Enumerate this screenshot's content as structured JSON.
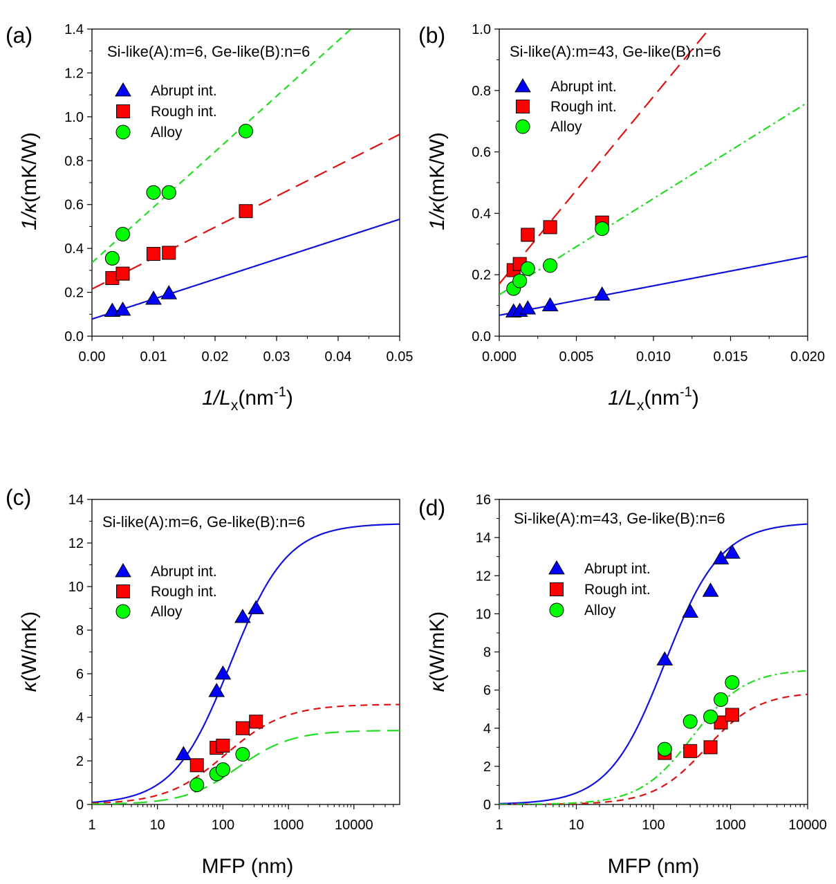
{
  "chart_data": [
    {
      "panel": "(a)",
      "type": "scatter",
      "annotation": "Si-like(A):m=6, Ge-like(B):n=6",
      "xlabel": "1/Lₓ(nm⁻¹)",
      "xlabel_main": "1/L",
      "xlabel_sub": "x",
      "xlabel_unit": "(nm",
      "xlabel_sup": "-1",
      "xlabel_close": ")",
      "ylabel": "1/κ (mK/W)",
      "ylabel_main": "1/κ",
      "ylabel_unit": "(mK/W)",
      "xscale": "linear",
      "xlim": [
        0,
        0.05
      ],
      "ylim": [
        0,
        1.4
      ],
      "xticks": [
        0,
        0.01,
        0.02,
        0.03,
        0.04,
        0.05
      ],
      "xtick_labels": [
        "0.00",
        "0.01",
        "0.02",
        "0.03",
        "0.04",
        "0.05"
      ],
      "yticks": [
        0,
        0.2,
        0.4,
        0.6,
        0.8,
        1.0,
        1.2,
        1.4
      ],
      "ytick_labels": [
        "0.0",
        "0.2",
        "0.4",
        "0.6",
        "0.8",
        "1.0",
        "1.2",
        "1.4"
      ],
      "legend_position": "upper-left",
      "series": [
        {
          "name": "Abrupt int.",
          "marker": "triangle",
          "color": "#0000ff",
          "x": [
            0.0033,
            0.005,
            0.01,
            0.0125
          ],
          "y": [
            0.115,
            0.12,
            0.17,
            0.195
          ],
          "fit": {
            "style": "solid",
            "kind": "linear",
            "intercept": 0.078,
            "slope": 9.1
          }
        },
        {
          "name": "Rough int.",
          "marker": "square",
          "color": "#ff0000",
          "x": [
            0.0033,
            0.005,
            0.01,
            0.0125,
            0.025
          ],
          "y": [
            0.265,
            0.285,
            0.375,
            0.38,
            0.57
          ],
          "fit": {
            "style": "dashed-long",
            "kind": "linear",
            "intercept": 0.215,
            "slope": 14.1
          }
        },
        {
          "name": "Alloy",
          "marker": "circle",
          "color": "#00ff00",
          "x": [
            0.0033,
            0.005,
            0.01,
            0.0125,
            0.025
          ],
          "y": [
            0.355,
            0.465,
            0.655,
            0.655,
            0.935
          ],
          "fit": {
            "style": "dashed",
            "kind": "linear",
            "intercept": 0.335,
            "slope": 25.3
          }
        }
      ]
    },
    {
      "panel": "(b)",
      "type": "scatter",
      "annotation": "Si-like(A):m=43, Ge-like(B):n=6",
      "xlabel": "1/Lₓ(nm⁻¹)",
      "xlabel_main": "1/L",
      "xlabel_sub": "x",
      "xlabel_unit": "(nm",
      "xlabel_sup": "-1",
      "xlabel_close": ")",
      "ylabel": "1/κ (mK/W)",
      "ylabel_main": "1/κ",
      "ylabel_unit": "(mK/W)",
      "xscale": "linear",
      "xlim": [
        0,
        0.02
      ],
      "ylim": [
        0,
        1.0
      ],
      "xticks": [
        0,
        0.005,
        0.01,
        0.015,
        0.02
      ],
      "xtick_labels": [
        "0.000",
        "0.005",
        "0.010",
        "0.015",
        "0.020"
      ],
      "yticks": [
        0,
        0.2,
        0.4,
        0.6,
        0.8,
        1.0
      ],
      "ytick_labels": [
        "0.0",
        "0.2",
        "0.4",
        "0.6",
        "0.8",
        "1.0"
      ],
      "legend_position": "upper-left",
      "series": [
        {
          "name": "Abrupt int.",
          "marker": "triangle",
          "color": "#0000ff",
          "x": [
            0.00093,
            0.00133,
            0.00185,
            0.0033,
            0.00667
          ],
          "y": [
            0.08,
            0.082,
            0.09,
            0.1,
            0.135
          ],
          "fit": {
            "style": "solid",
            "kind": "linear",
            "intercept": 0.068,
            "slope": 9.6
          }
        },
        {
          "name": "Rough int.",
          "marker": "square",
          "color": "#ff0000",
          "x": [
            0.00093,
            0.00133,
            0.00185,
            0.0033,
            0.00667
          ],
          "y": [
            0.215,
            0.235,
            0.33,
            0.355,
            0.37
          ],
          "fit": {
            "style": "dashed-long",
            "kind": "linear",
            "intercept": 0.17,
            "slope": 61.0
          }
        },
        {
          "name": "Alloy",
          "marker": "circle",
          "color": "#00ff00",
          "x": [
            0.00093,
            0.00133,
            0.00185,
            0.0033,
            0.00667
          ],
          "y": [
            0.155,
            0.18,
            0.22,
            0.23,
            0.35
          ],
          "fit": {
            "style": "dash-dot",
            "kind": "linear",
            "intercept": 0.135,
            "slope": 31.3
          }
        }
      ]
    },
    {
      "panel": "(c)",
      "type": "scatter",
      "annotation": "Si-like(A):m=6, Ge-like(B):n=6",
      "xlabel": "MFP (nm)",
      "ylabel": "κ(W/mK)",
      "ylabel_main": "κ",
      "ylabel_unit": "(W/mK)",
      "xscale": "log",
      "xlim": [
        1,
        50000
      ],
      "ylim": [
        0,
        14
      ],
      "xticks": [
        1,
        10,
        100,
        1000,
        10000
      ],
      "xtick_labels": [
        "1",
        "10",
        "100",
        "1000",
        "10000"
      ],
      "yticks": [
        0,
        2,
        4,
        6,
        8,
        10,
        12,
        14
      ],
      "ytick_labels": [
        "0",
        "2",
        "4",
        "6",
        "8",
        "10",
        "12",
        "14"
      ],
      "legend_position": "center-left",
      "series": [
        {
          "name": "Abrupt int.",
          "marker": "triangle",
          "color": "#0000ff",
          "x": [
            25,
            80,
            100,
            200,
            320
          ],
          "y": [
            2.3,
            5.2,
            6.0,
            8.6,
            9.0
          ],
          "fit": {
            "style": "solid",
            "kind": "sigmoid-log",
            "plateau": 12.9,
            "center": 130,
            "width": 0.95
          }
        },
        {
          "name": "Rough int.",
          "marker": "square",
          "color": "#ff0000",
          "x": [
            40,
            80,
            100,
            200,
            320
          ],
          "y": [
            1.8,
            2.6,
            2.7,
            3.5,
            3.8
          ],
          "fit": {
            "style": "dashed",
            "kind": "sigmoid-log",
            "plateau": 4.6,
            "center": 110,
            "width": 1.0
          }
        },
        {
          "name": "Alloy",
          "marker": "circle",
          "color": "#00ff00",
          "x": [
            40,
            80,
            100,
            200
          ],
          "y": [
            0.9,
            1.4,
            1.6,
            2.3
          ],
          "fit": {
            "style": "dashed-long",
            "kind": "sigmoid-log",
            "plateau": 3.4,
            "center": 170,
            "width": 0.9
          }
        }
      ]
    },
    {
      "panel": "(d)",
      "type": "scatter",
      "annotation": "Si-like(A):m=43, Ge-like(B):n=6",
      "xlabel": "MFP (nm)",
      "ylabel": "κ(W/mK)",
      "ylabel_main": "κ",
      "ylabel_unit": "(W/mK)",
      "xscale": "log",
      "xlim": [
        1,
        10000
      ],
      "ylim": [
        0,
        16
      ],
      "xticks": [
        1,
        10,
        100,
        1000,
        10000
      ],
      "xtick_labels": [
        "1",
        "10",
        "100",
        "1000",
        "10000"
      ],
      "yticks": [
        0,
        2,
        4,
        6,
        8,
        10,
        12,
        14,
        16
      ],
      "ytick_labels": [
        "0",
        "2",
        "4",
        "6",
        "8",
        "10",
        "12",
        "14",
        "16"
      ],
      "legend_position": "upper-left",
      "series": [
        {
          "name": "Abrupt int.",
          "marker": "triangle",
          "color": "#0000ff",
          "x": [
            140,
            300,
            550,
            750,
            1050
          ],
          "y": [
            7.6,
            10.1,
            11.2,
            12.9,
            13.2
          ],
          "fit": {
            "style": "solid",
            "kind": "sigmoid-log",
            "plateau": 14.8,
            "center": 140,
            "width": 0.8
          }
        },
        {
          "name": "Rough int.",
          "marker": "square",
          "color": "#ff0000",
          "x": [
            140,
            300,
            550,
            750,
            1050
          ],
          "y": [
            2.7,
            2.8,
            3.0,
            4.3,
            4.7
          ],
          "fit": {
            "style": "dashed",
            "kind": "sigmoid-log",
            "plateau": 5.9,
            "center": 480,
            "width": 0.75
          }
        },
        {
          "name": "Alloy",
          "marker": "circle",
          "color": "#00ff00",
          "x": [
            140,
            300,
            550,
            750,
            1050
          ],
          "y": [
            2.9,
            4.35,
            4.6,
            5.5,
            6.4
          ],
          "fit": {
            "style": "dash-dot",
            "kind": "sigmoid-log",
            "plateau": 7.1,
            "center": 320,
            "width": 0.75
          }
        }
      ]
    }
  ]
}
